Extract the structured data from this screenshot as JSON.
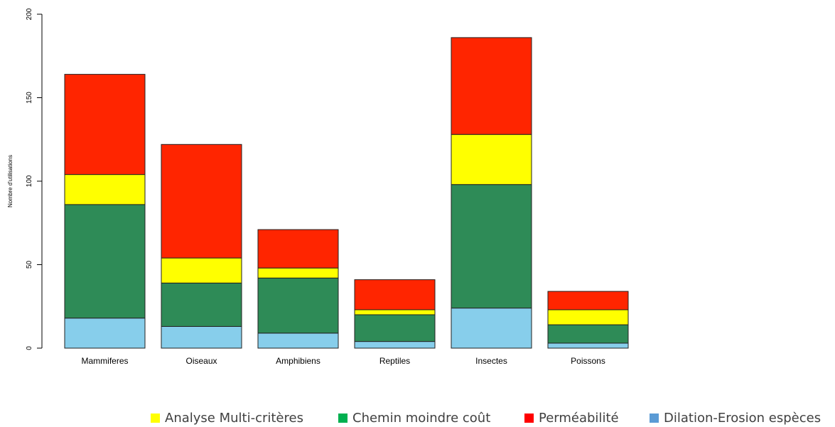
{
  "chart_data": {
    "type": "bar",
    "stacked": true,
    "ylabel": "Nombre d'utilisations",
    "xlabel": "",
    "ylim": [
      0,
      200
    ],
    "yticks": [
      0,
      50,
      100,
      150,
      200
    ],
    "grid": false,
    "categories": [
      "Mammiferes",
      "Oiseaux",
      "Amphibiens",
      "Reptiles",
      "Insectes",
      "Poissons"
    ],
    "series": [
      {
        "name": "Dilation-Erosion espèces",
        "color": "#87CEEB",
        "values": [
          18,
          13,
          9,
          4,
          24,
          3
        ]
      },
      {
        "name": "Chemin moindre coût",
        "color": "#2E8B57",
        "values": [
          68,
          26,
          33,
          16,
          74,
          11
        ]
      },
      {
        "name": "Analyse Multi-critères",
        "color": "#FFFF00",
        "values": [
          18,
          15,
          6,
          3,
          30,
          9
        ]
      },
      {
        "name": "Perméabilité",
        "color": "#FF2500",
        "values": [
          60,
          68,
          23,
          18,
          58,
          11
        ]
      }
    ],
    "legend_position": "bottom",
    "legend": [
      {
        "label": "Analyse Multi-critères",
        "color": "#FFFF00"
      },
      {
        "label": "Chemin moindre coût",
        "color": "#00B050"
      },
      {
        "label": "Perméabilité",
        "color": "#FF0000"
      },
      {
        "label": "Dilation-Erosion espèces",
        "color": "#5B9BD5"
      }
    ]
  }
}
